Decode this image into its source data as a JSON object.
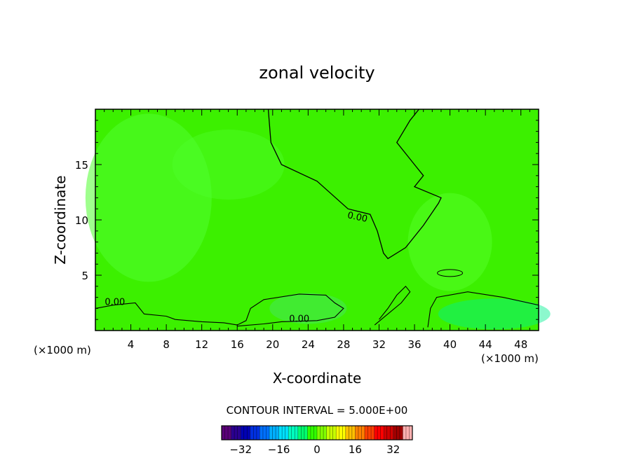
{
  "chart_data": {
    "type": "heatmap",
    "title": "zonal velocity",
    "xlabel": "X-coordinate",
    "ylabel": "Z-coordinate",
    "x_unit": "(×1000 m)",
    "xlim": [
      0,
      50
    ],
    "ylim": [
      0,
      20
    ],
    "x_ticks": [
      4,
      8,
      12,
      16,
      20,
      24,
      28,
      32,
      36,
      40,
      44,
      48
    ],
    "y_ticks": [
      5,
      10,
      15
    ],
    "contour_interval_text": "CONTOUR INTERVAL = 5.000E+00",
    "contour_labels": [
      "0.00",
      "0.00",
      "0.00"
    ],
    "zero_contour_upper": [
      [
        19.5,
        20
      ],
      [
        19.8,
        17
      ],
      [
        21,
        15
      ],
      [
        25,
        13.5
      ],
      [
        28.5,
        11
      ],
      [
        31,
        10.5
      ],
      [
        31.8,
        9
      ],
      [
        32.5,
        7
      ],
      [
        33,
        6.5
      ],
      [
        35,
        7.5
      ],
      [
        37,
        9.5
      ],
      [
        38.7,
        11.5
      ],
      [
        39,
        12
      ],
      [
        36,
        13
      ],
      [
        37,
        14
      ],
      [
        36,
        15
      ],
      [
        34,
        17
      ],
      [
        35.5,
        19
      ],
      [
        36.5,
        20
      ]
    ],
    "colorbar": {
      "range": [
        -40,
        40
      ],
      "ticks": [
        -32,
        -16,
        0,
        16,
        32
      ],
      "colors": [
        "#5a0078",
        "#2a0090",
        "#0000b4",
        "#0030e0",
        "#0070ff",
        "#00b0ff",
        "#00e0ff",
        "#00ffc0",
        "#00ff70",
        "#30ff00",
        "#80ff00",
        "#c8ff00",
        "#ffff00",
        "#ffc000",
        "#ff8000",
        "#ff4000",
        "#ff0000",
        "#d00000",
        "#a00000",
        "#ffb0b0"
      ]
    },
    "field_colors": {
      "base": "#3cf000",
      "light": "#50ff30",
      "zero": "#46e85a",
      "positive": "#55ff2a",
      "negative": "#00f090"
    }
  }
}
